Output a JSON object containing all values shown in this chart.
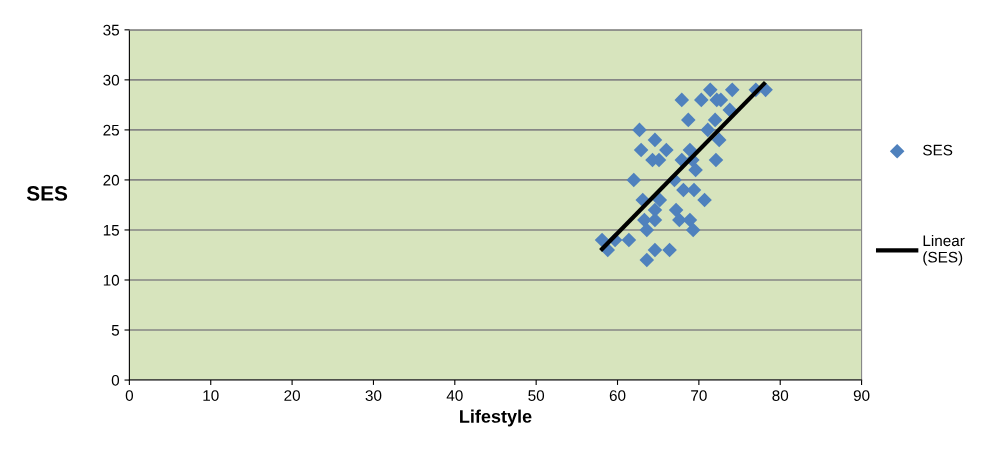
{
  "chart_data": {
    "type": "scatter",
    "xlabel": "Lifestyle",
    "ylabel": "SES",
    "xlim": [
      0,
      90
    ],
    "xticks": [
      0,
      10,
      20,
      30,
      40,
      50,
      60,
      70,
      80,
      90
    ],
    "ylim": [
      0,
      35
    ],
    "yticks": [
      0,
      5,
      10,
      15,
      20,
      25,
      30,
      35
    ],
    "grid": "y",
    "legend": "right",
    "marker": "diamond",
    "series": [
      {
        "name": "SES",
        "color": "#4f81bd",
        "x": [
          58.1,
          58.8,
          59.7,
          61.4,
          62.0,
          62.7,
          62.9,
          63.1,
          63.3,
          63.6,
          63.6,
          64.3,
          64.6,
          64.6,
          64.6,
          64.6,
          65.1,
          65.2,
          66.0,
          66.4,
          67.0,
          67.2,
          67.6,
          67.9,
          67.9,
          68.1,
          68.7,
          68.9,
          68.9,
          69.2,
          69.3,
          69.4,
          69.6,
          70.3,
          70.7,
          71.1,
          71.4,
          72.0,
          72.1,
          72.2,
          72.5,
          72.7,
          73.8,
          74.1,
          77.0,
          78.2
        ],
        "values": [
          14,
          13,
          14,
          14,
          20,
          25,
          23,
          18,
          16,
          15,
          12,
          22,
          24,
          17,
          16,
          13,
          22,
          18,
          23,
          13,
          20,
          17,
          16,
          28,
          22,
          19,
          26,
          23,
          16,
          22,
          15,
          19,
          21,
          28,
          18,
          25,
          29,
          26,
          22,
          28,
          24,
          28,
          27,
          29,
          29,
          29
        ]
      },
      {
        "name": "Linear (SES)",
        "type": "line",
        "color": "#000000",
        "marker": "none",
        "x": [
          58.1,
          78.0
        ],
        "values": [
          13.1,
          29.6
        ]
      }
    ]
  }
}
